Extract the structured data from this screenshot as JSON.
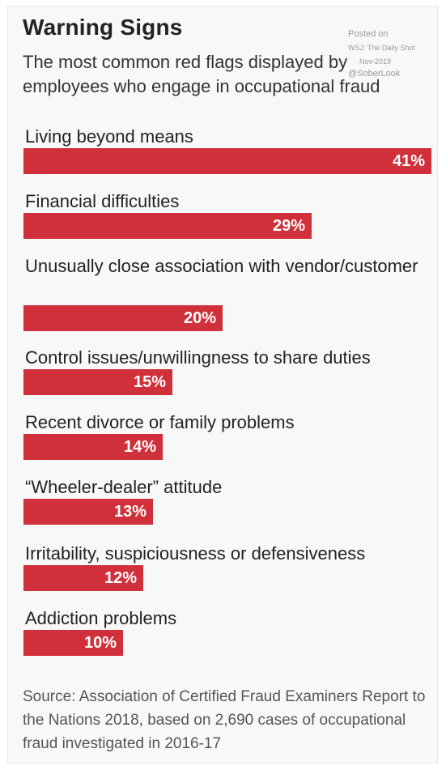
{
  "header": {
    "title": "Warning Signs",
    "subtitle": "The most common red flags displayed by employees who engage in occupational fraud"
  },
  "watermark": {
    "line1": "Posted on",
    "line2": "WSJ: The Daily Shot",
    "line3": "Nov-2019",
    "line4": "@SoberLook"
  },
  "source": "Source: Association of Certified Fraud Examiners Report to the Nations 2018, based on 2,690 cases of occupational fraud investigated in 2016-17",
  "colors": {
    "bar": "#d0303a",
    "value_text": "#ffffff",
    "background": "#f8f8f8"
  },
  "chart_data": {
    "type": "bar",
    "orientation": "horizontal",
    "title": "Warning Signs",
    "subtitle": "The most common red flags displayed by employees who engage in occupational fraud",
    "unit": "%",
    "xlim": [
      0,
      41
    ],
    "grid": false,
    "categories": [
      "Living beyond means",
      "Financial difficulties",
      "Unusually close association with vendor/customer",
      "Control issues/unwillingness to share duties",
      "Recent divorce or family problems",
      "“Wheeler-dealer” attitude",
      "Irritability, suspiciousness or defensiveness",
      "Addiction problems"
    ],
    "values": [
      41,
      29,
      20,
      15,
      14,
      13,
      12,
      10
    ],
    "value_labels": [
      "41%",
      "29%",
      "20%",
      "15%",
      "14%",
      "13%",
      "12%",
      "10%"
    ]
  }
}
